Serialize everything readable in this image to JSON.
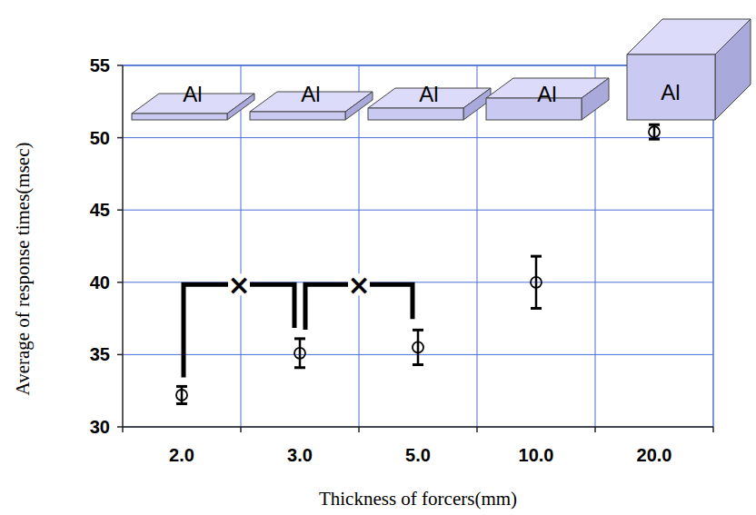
{
  "chart_data": {
    "type": "scatter",
    "categories": [
      "2.0",
      "3.0",
      "5.0",
      "10.0",
      "20.0"
    ],
    "values": [
      32.2,
      35.1,
      35.5,
      40.0,
      50.4
    ],
    "errors": [
      0.6,
      1.0,
      1.2,
      1.8,
      0.5
    ],
    "color": "#000000",
    "marker": "circle",
    "xlabel": "Thickness of forcers(mm)",
    "ylabel": "Average of response times(msec)",
    "ylim": [
      30,
      55
    ],
    "yticks": [
      30,
      35,
      40,
      45,
      50,
      55
    ],
    "grid": true,
    "annotations": {
      "box_labels": [
        "Al",
        "Al",
        "Al",
        "Al",
        "Al"
      ],
      "comparisons": [
        "×",
        "×"
      ]
    }
  }
}
